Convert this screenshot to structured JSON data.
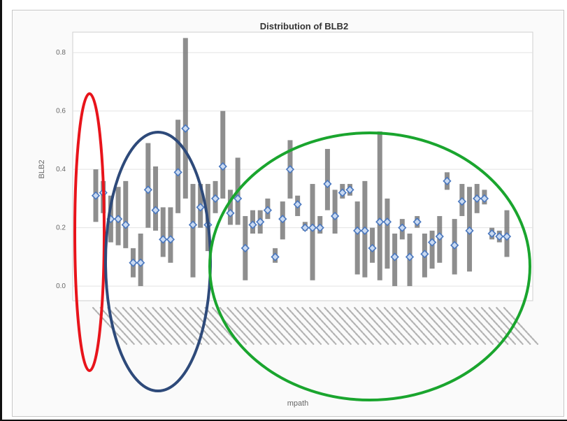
{
  "chart_data": {
    "type": "scatter",
    "title": "Distribution of BLB2",
    "ylabel": "BLB2",
    "xlabel": "mpath",
    "ylim": [
      -0.05,
      0.87
    ],
    "yticks": [
      0.0,
      0.2,
      0.4,
      0.6,
      0.8
    ],
    "ytick_labels": [
      "0.0",
      "0.2",
      "0.4",
      "0.6",
      "0.8"
    ],
    "grid": true,
    "categories": [],
    "series": [
      {
        "marker_values": [
          0.31,
          0.32,
          0.23,
          0.23,
          0.21,
          0.08,
          0.08,
          0.33,
          0.26,
          0.16,
          0.16,
          0.39,
          0.54,
          0.21,
          0.27,
          0.21,
          0.3,
          0.41,
          0.25,
          0.3,
          0.13,
          0.21,
          0.22,
          0.26,
          0.1,
          0.23,
          0.4,
          0.28,
          0.2,
          0.2,
          0.2,
          0.35,
          0.24,
          0.32,
          0.33,
          0.19,
          0.19,
          0.13,
          0.22,
          0.22,
          0.1,
          0.2,
          0.1,
          0.22,
          0.11,
          0.15,
          0.17,
          0.36,
          0.14,
          0.29,
          0.19,
          0.3,
          0.3,
          0.18,
          0.17,
          0.17
        ],
        "low": [
          0.22,
          0.25,
          0.15,
          0.14,
          0.13,
          0.03,
          0.0,
          0.2,
          0.19,
          0.1,
          0.08,
          0.25,
          0.3,
          0.03,
          0.2,
          0.12,
          0.25,
          0.3,
          0.21,
          0.21,
          0.02,
          0.18,
          0.18,
          0.23,
          0.08,
          0.16,
          0.3,
          0.24,
          0.19,
          0.02,
          0.18,
          0.26,
          0.18,
          0.3,
          0.31,
          0.04,
          0.03,
          0.08,
          0.02,
          0.06,
          0.0,
          0.16,
          0.0,
          0.2,
          0.03,
          0.06,
          0.08,
          0.33,
          0.04,
          0.24,
          0.05,
          0.25,
          0.28,
          0.16,
          0.15,
          0.1
        ],
        "high": [
          0.4,
          0.36,
          0.31,
          0.34,
          0.36,
          0.13,
          0.18,
          0.49,
          0.41,
          0.27,
          0.27,
          0.57,
          0.85,
          0.35,
          0.35,
          0.35,
          0.36,
          0.6,
          0.33,
          0.44,
          0.24,
          0.26,
          0.26,
          0.3,
          0.13,
          0.29,
          0.5,
          0.31,
          0.22,
          0.35,
          0.24,
          0.47,
          0.33,
          0.35,
          0.35,
          0.29,
          0.36,
          0.2,
          0.53,
          0.3,
          0.18,
          0.23,
          0.18,
          0.24,
          0.18,
          0.19,
          0.24,
          0.39,
          0.23,
          0.35,
          0.34,
          0.35,
          0.33,
          0.2,
          0.19,
          0.26
        ]
      }
    ],
    "colors": {
      "bar": "#7a7a7a",
      "marker_edge": "#4a78c0",
      "marker_fill": "#c9d9f0",
      "grid": "#e3e3e3"
    }
  },
  "annotations": {
    "ellipses": [
      {
        "color": "#e8141b"
      },
      {
        "color": "#2e4a7a"
      },
      {
        "color": "#1aa52e"
      }
    ]
  }
}
